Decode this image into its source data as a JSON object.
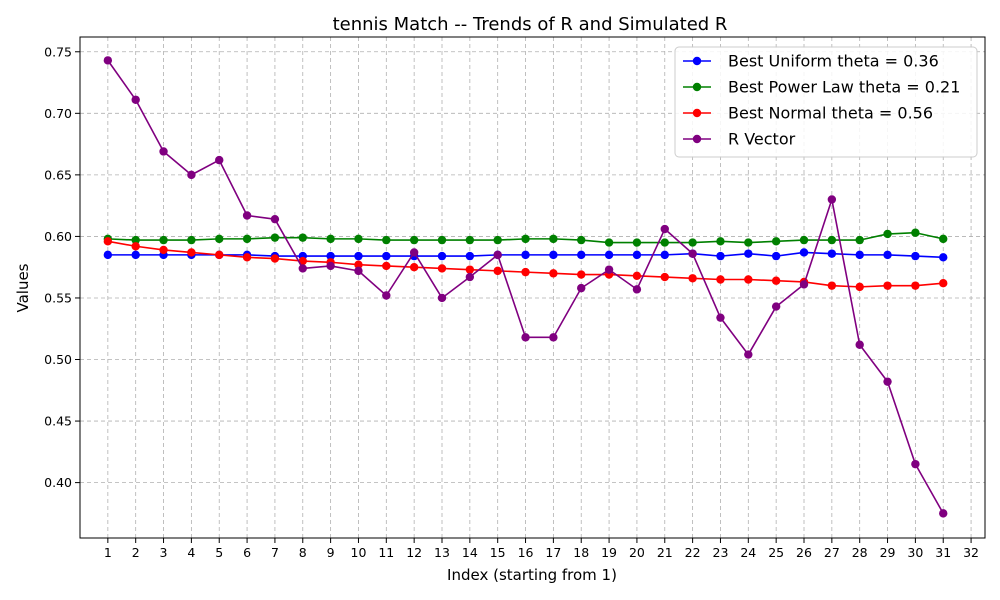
{
  "chart_data": {
    "type": "line",
    "title": "tennis Match -- Trends of R and Simulated R",
    "xlabel": "Index (starting from 1)",
    "ylabel": "Values",
    "xlim": [
      0,
      32.5
    ],
    "ylim": [
      0.355,
      0.762
    ],
    "x_ticks": [
      1,
      2,
      3,
      4,
      5,
      6,
      7,
      8,
      9,
      10,
      11,
      12,
      13,
      14,
      15,
      16,
      17,
      18,
      19,
      20,
      21,
      22,
      23,
      24,
      25,
      26,
      27,
      28,
      29,
      30,
      31,
      32
    ],
    "y_ticks": [
      0.4,
      0.45,
      0.5,
      0.55,
      0.6,
      0.65,
      0.7,
      0.75
    ],
    "grid": true,
    "legend_position": "top-right",
    "x": [
      1,
      2,
      3,
      4,
      5,
      6,
      7,
      8,
      9,
      10,
      11,
      12,
      13,
      14,
      15,
      16,
      17,
      18,
      19,
      20,
      21,
      22,
      23,
      24,
      25,
      26,
      27,
      28,
      29,
      30,
      31
    ],
    "series": [
      {
        "name": "Best Uniform theta = 0.36",
        "color": "#0000ff",
        "values": [
          0.585,
          0.585,
          0.585,
          0.585,
          0.585,
          0.585,
          0.584,
          0.584,
          0.584,
          0.584,
          0.584,
          0.584,
          0.584,
          0.584,
          0.585,
          0.585,
          0.585,
          0.585,
          0.585,
          0.585,
          0.585,
          0.586,
          0.584,
          0.586,
          0.584,
          0.587,
          0.586,
          0.585,
          0.585,
          0.584,
          0.583
        ]
      },
      {
        "name": "Best Power Law theta = 0.21",
        "color": "#008000",
        "values": [
          0.598,
          0.597,
          0.597,
          0.597,
          0.598,
          0.598,
          0.599,
          0.599,
          0.598,
          0.598,
          0.597,
          0.597,
          0.597,
          0.597,
          0.597,
          0.598,
          0.598,
          0.597,
          0.595,
          0.595,
          0.595,
          0.595,
          0.596,
          0.595,
          0.596,
          0.597,
          0.597,
          0.597,
          0.602,
          0.603,
          0.598
        ]
      },
      {
        "name": "Best Normal theta = 0.56",
        "color": "#ff0000",
        "values": [
          0.596,
          0.592,
          0.589,
          0.587,
          0.585,
          0.583,
          0.582,
          0.58,
          0.579,
          0.577,
          0.576,
          0.575,
          0.574,
          0.573,
          0.572,
          0.571,
          0.57,
          0.569,
          0.569,
          0.568,
          0.567,
          0.566,
          0.565,
          0.565,
          0.564,
          0.563,
          0.56,
          0.559,
          0.56,
          0.56,
          0.562
        ]
      },
      {
        "name": "R Vector",
        "color": "#800080",
        "values": [
          0.743,
          0.711,
          0.669,
          0.65,
          0.662,
          0.617,
          0.614,
          0.574,
          0.576,
          0.572,
          0.552,
          0.587,
          0.55,
          0.567,
          0.585,
          0.518,
          0.518,
          0.558,
          0.573,
          0.557,
          0.606,
          0.586,
          0.534,
          0.504,
          0.543,
          0.561,
          0.63,
          0.512,
          0.482,
          0.415,
          0.375
        ]
      }
    ]
  }
}
